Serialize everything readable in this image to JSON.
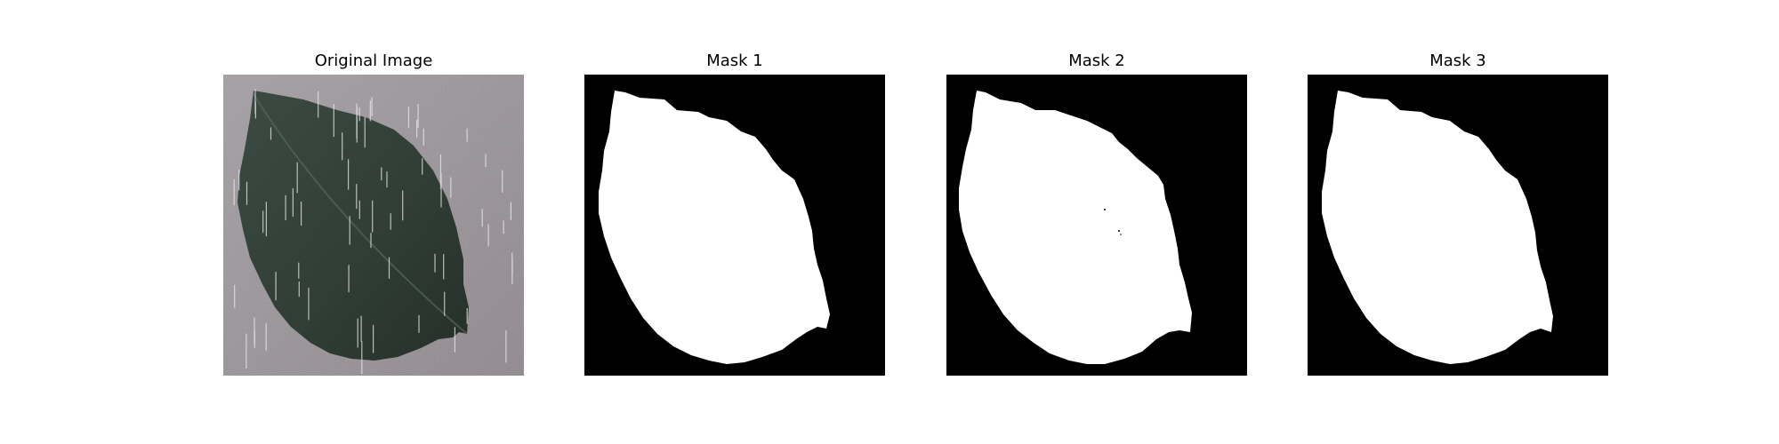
{
  "panels": [
    {
      "title": "Original Image"
    },
    {
      "title": "Mask 1"
    },
    {
      "title": "Mask 2"
    },
    {
      "title": "Mask 3"
    }
  ],
  "colors": {
    "background": "#9d979b",
    "leaf": "#34433b",
    "leaf_dark": "#223029",
    "rain": "#e8e8ea",
    "mask_on": "#ffffff",
    "mask_off": "#000000"
  }
}
